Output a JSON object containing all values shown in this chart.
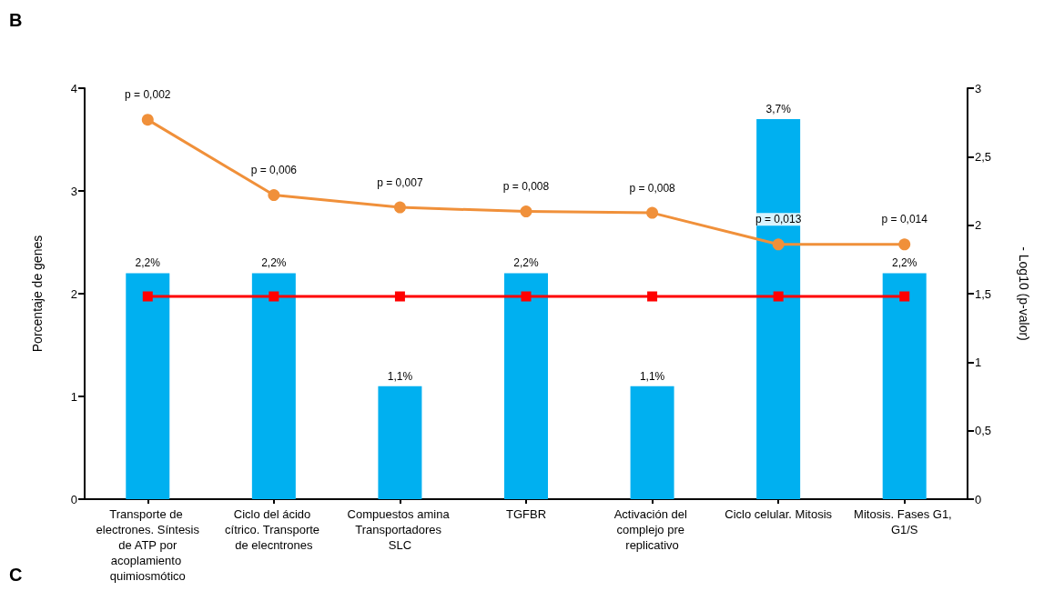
{
  "chart_data": {
    "type": "bar",
    "title": "B",
    "annotations": [
      "C",
      "p = 0,002",
      "p = 0,006",
      "p = 0,007",
      "p = 0,008",
      "p = 0,008",
      "p = 0,013",
      "p = 0,014"
    ],
    "categories": [
      "Transporte de electrones. Síntesis de ATP por acoplamiento quimiosmótico",
      "Ciclo del ácido cítrico. Transporte de elecntrones",
      "Compuestos amina Transportadores SLC",
      "TGFBR",
      "Activación del complejo pre replicativo",
      "Ciclo celular. Mitosis",
      "Mitosis. Fases G1, G1/S"
    ],
    "ylabel": "Porcentaje de genes",
    "y2label": "- Log10 (p-valor)",
    "ylim": [
      0,
      4
    ],
    "yticks": [
      0,
      1,
      2,
      3,
      4
    ],
    "y2lim": [
      0,
      3
    ],
    "y2ticks": [
      0,
      {
        "value": 0.5,
        "label": "0,5"
      },
      1,
      {
        "value": 1.5,
        "label": "1,5"
      },
      2,
      {
        "value": 2.5,
        "label": "2,5"
      },
      3
    ],
    "grid": false,
    "series": [
      {
        "color": "#00b0f0",
        "values": [
          2.2,
          2.2,
          1.1,
          2.2,
          1.1,
          3.7,
          2.2
        ],
        "value_labels": [
          "2,2%",
          "2,2%",
          "1,1%",
          "2,2%",
          "1,1%",
          "3,7%",
          "2,2%"
        ]
      },
      {
        "type": "line",
        "axis": "y2",
        "color": "#f0903a",
        "marker": "circle",
        "values": [
          2.77,
          2.22,
          2.13,
          2.1,
          2.09,
          1.86,
          1.86
        ]
      },
      {
        "type": "line",
        "axis": "y2",
        "color": "#ff0000",
        "marker": "square",
        "values": [
          1.48,
          1.48,
          1.48,
          1.48,
          1.48,
          1.48,
          1.48
        ]
      }
    ]
  }
}
